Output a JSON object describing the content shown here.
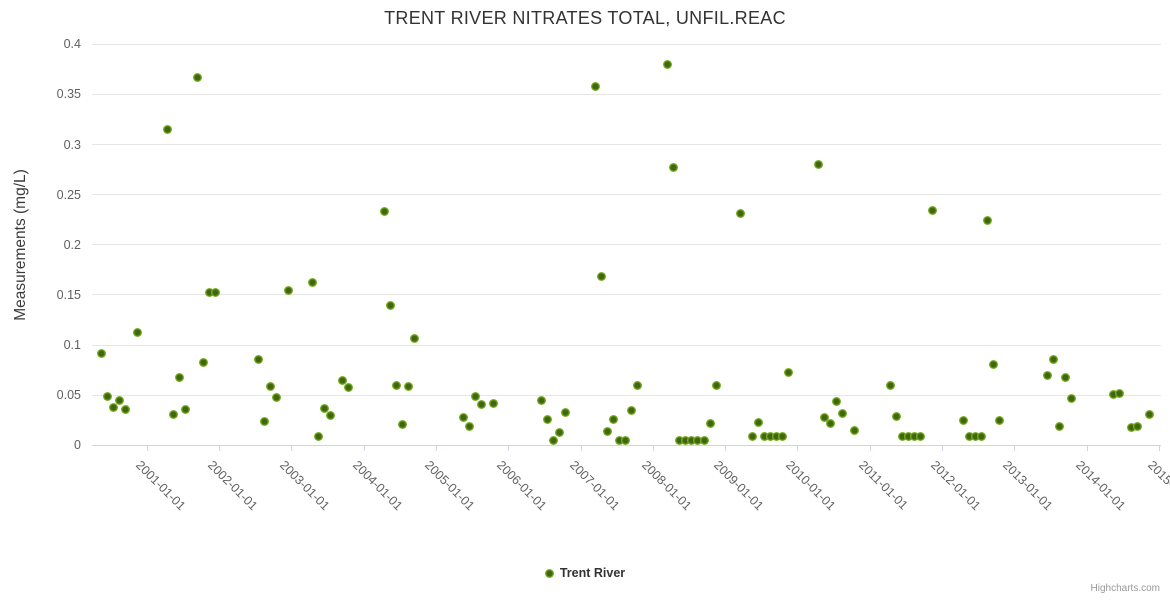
{
  "title": "TRENT RIVER NITRATES TOTAL, UNFIL.REAC",
  "legend": {
    "label": "Trent River"
  },
  "credits": "Highcharts.com",
  "colors": {
    "marker_outer": "#79b321",
    "marker_inner": "#41660f",
    "grid": "#e6e6e6",
    "axis_line": "#ccd6eb",
    "tick_label": "#606060",
    "title_text": "#333333",
    "credits_text": "#999999"
  },
  "y_axis": {
    "title": "Measurements (mg/L)",
    "min": 0,
    "max": 0.4,
    "tick_interval": 0.05,
    "labels": [
      "0",
      "0.05",
      "0.1",
      "0.15",
      "0.2",
      "0.25",
      "0.3",
      "0.35",
      "0.4"
    ]
  },
  "x_axis": {
    "labels": [
      "2001-01-01",
      "2002-01-01",
      "2003-01-01",
      "2004-01-01",
      "2005-01-01",
      "2006-01-01",
      "2007-01-01",
      "2008-01-01",
      "2009-01-01",
      "2010-01-01",
      "2011-01-01",
      "2012-01-01",
      "2013-01-01",
      "2014-01-01",
      "2015-01-01"
    ]
  },
  "chart_data": {
    "type": "scatter",
    "title": "TRENT RIVER NITRATES TOTAL, UNFIL.REAC",
    "xlabel": "",
    "ylabel": "Measurements (mg/L)",
    "ylim": [
      0,
      0.4
    ],
    "x_tick_labels": [
      "2001-01-01",
      "2002-01-01",
      "2003-01-01",
      "2004-01-01",
      "2005-01-01",
      "2006-01-01",
      "2007-01-01",
      "2008-01-01",
      "2009-01-01",
      "2010-01-01",
      "2011-01-01",
      "2012-01-01",
      "2013-01-01",
      "2014-01-01",
      "2015-01-01"
    ],
    "grid": "horizontal-only",
    "legend_position": "bottom-center",
    "series": [
      {
        "name": "Trent River",
        "points": [
          [
            "2000-05",
            0.092
          ],
          [
            "2000-06",
            0.049
          ],
          [
            "2000-07",
            0.038
          ],
          [
            "2000-08",
            0.045
          ],
          [
            "2000-09",
            0.036
          ],
          [
            "2000-11",
            0.113
          ],
          [
            "2001-04",
            0.315
          ],
          [
            "2001-05",
            0.031
          ],
          [
            "2001-06",
            0.068
          ],
          [
            "2001-07",
            0.036
          ],
          [
            "2001-09",
            0.367
          ],
          [
            "2001-10",
            0.083
          ],
          [
            "2001-11",
            0.152
          ],
          [
            "2001-12",
            0.152
          ],
          [
            "2002-07",
            0.086
          ],
          [
            "2002-08",
            0.024
          ],
          [
            "2002-09",
            0.059
          ],
          [
            "2002-10",
            0.048
          ],
          [
            "2002-12",
            0.154
          ],
          [
            "2003-04",
            0.162
          ],
          [
            "2003-05",
            0.009
          ],
          [
            "2003-06",
            0.037
          ],
          [
            "2003-07",
            0.03
          ],
          [
            "2003-09",
            0.065
          ],
          [
            "2003-10",
            0.058
          ],
          [
            "2004-04",
            0.233
          ],
          [
            "2004-05",
            0.139
          ],
          [
            "2004-06",
            0.06
          ],
          [
            "2004-07",
            0.021
          ],
          [
            "2004-08",
            0.059
          ],
          [
            "2004-09",
            0.107
          ],
          [
            "2005-05",
            0.028
          ],
          [
            "2005-06",
            0.019
          ],
          [
            "2005-07",
            0.049
          ],
          [
            "2005-08",
            0.041
          ],
          [
            "2005-10",
            0.042
          ],
          [
            "2006-06",
            0.045
          ],
          [
            "2006-07",
            0.026
          ],
          [
            "2006-08",
            0.005
          ],
          [
            "2006-09",
            0.013
          ],
          [
            "2006-10",
            0.033
          ],
          [
            "2007-03",
            0.358
          ],
          [
            "2007-04",
            0.168
          ],
          [
            "2007-05",
            0.014
          ],
          [
            "2007-06",
            0.026
          ],
          [
            "2007-07",
            0.005
          ],
          [
            "2007-08",
            0.005
          ],
          [
            "2007-09",
            0.035
          ],
          [
            "2007-10",
            0.06
          ],
          [
            "2008-03",
            0.38
          ],
          [
            "2008-04",
            0.277
          ],
          [
            "2008-05",
            0.005
          ],
          [
            "2008-06",
            0.005
          ],
          [
            "2008-07",
            0.005
          ],
          [
            "2008-08",
            0.005
          ],
          [
            "2008-09",
            0.005
          ],
          [
            "2008-10",
            0.022
          ],
          [
            "2008-11",
            0.06
          ],
          [
            "2009-03",
            0.231
          ],
          [
            "2009-05",
            0.009
          ],
          [
            "2009-06",
            0.023
          ],
          [
            "2009-07",
            0.009
          ],
          [
            "2009-08",
            0.009
          ],
          [
            "2009-09",
            0.009
          ],
          [
            "2009-10",
            0.009
          ],
          [
            "2009-11",
            0.073
          ],
          [
            "2010-04",
            0.28
          ],
          [
            "2010-05",
            0.028
          ],
          [
            "2010-06",
            0.022
          ],
          [
            "2010-07",
            0.044
          ],
          [
            "2010-08",
            0.032
          ],
          [
            "2010-10",
            0.015
          ],
          [
            "2011-04",
            0.06
          ],
          [
            "2011-05",
            0.029
          ],
          [
            "2011-06",
            0.009
          ],
          [
            "2011-07",
            0.009
          ],
          [
            "2011-08",
            0.009
          ],
          [
            "2011-09",
            0.009
          ],
          [
            "2011-11",
            0.234
          ],
          [
            "2012-04",
            0.025
          ],
          [
            "2012-05",
            0.009
          ],
          [
            "2012-06",
            0.009
          ],
          [
            "2012-07",
            0.009
          ],
          [
            "2012-08",
            0.224
          ],
          [
            "2012-09",
            0.081
          ],
          [
            "2012-10",
            0.025
          ],
          [
            "2013-06",
            0.07
          ],
          [
            "2013-07",
            0.086
          ],
          [
            "2013-08",
            0.019
          ],
          [
            "2013-09",
            0.068
          ],
          [
            "2013-10",
            0.047
          ],
          [
            "2014-05",
            0.051
          ],
          [
            "2014-06",
            0.052
          ],
          [
            "2014-08",
            0.018
          ],
          [
            "2014-09",
            0.019
          ],
          [
            "2014-11",
            0.031
          ]
        ]
      }
    ]
  }
}
